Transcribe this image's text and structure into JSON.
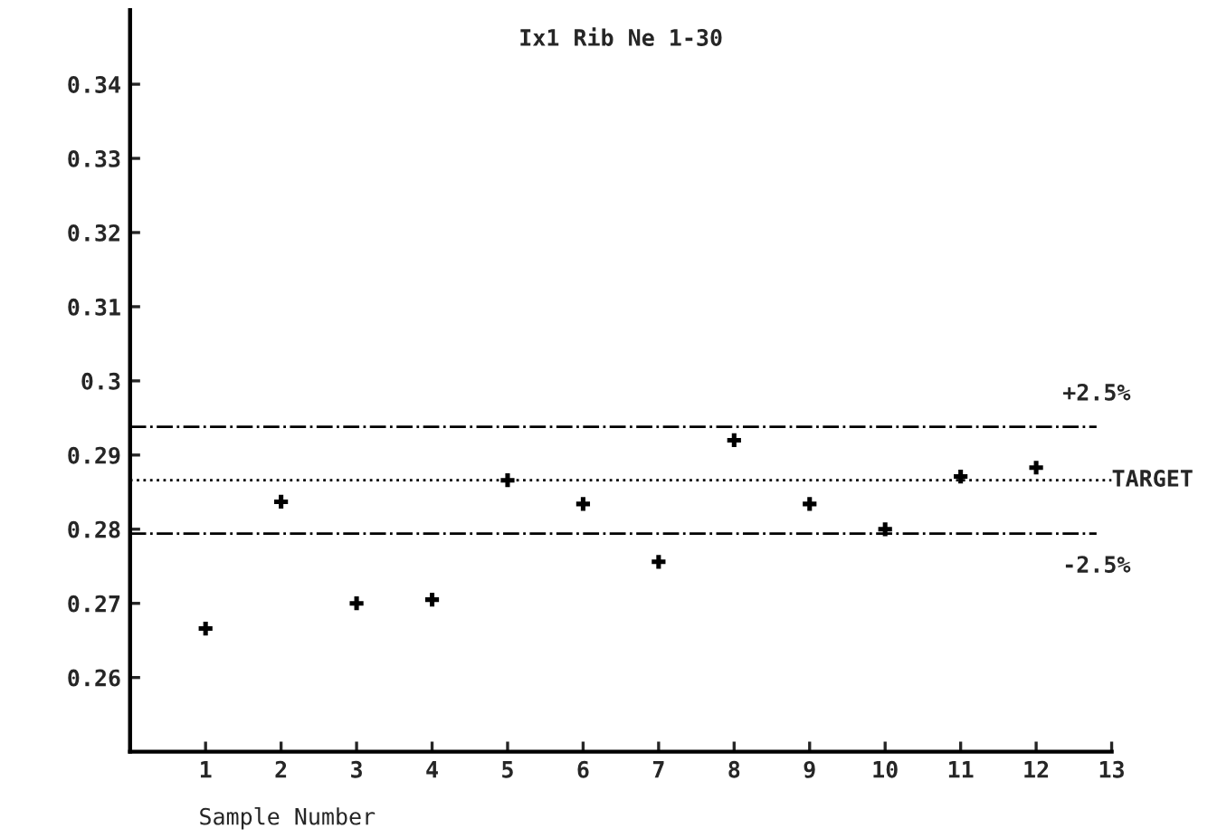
{
  "chart_data": {
    "type": "scatter",
    "title": "Ix1 Rib Ne 1-30",
    "xlabel": "Sample Number",
    "x": [
      1,
      2,
      3,
      4,
      5,
      6,
      7,
      8,
      9,
      10,
      11,
      12
    ],
    "series": [
      {
        "color": "#000000",
        "values": [
          0.2666,
          0.2837,
          0.27,
          0.2705,
          0.2866,
          0.2834,
          0.2756,
          0.292,
          0.2834,
          0.28,
          0.2871,
          0.2883
        ]
      }
    ],
    "xlim": [
      0,
      13
    ],
    "xticks": [
      1,
      2,
      3,
      4,
      5,
      6,
      7,
      8,
      9,
      10,
      11,
      12,
      13
    ],
    "ylim": [
      0.25,
      0.35
    ],
    "yticks": [
      0.26,
      0.27,
      0.28,
      0.29,
      0.3,
      0.31,
      0.32,
      0.33,
      0.34
    ],
    "ref_lines": [
      {
        "axis": "y",
        "value": 0.2938,
        "line_style": "dashdot",
        "color": "#000000"
      },
      {
        "axis": "y",
        "value": 0.2866,
        "label": "TARGET",
        "line_style": "dotted",
        "color": "#000000"
      },
      {
        "axis": "y",
        "value": 0.2794,
        "line_style": "dashdot",
        "color": "#000000"
      }
    ],
    "annotations": [
      {
        "text": "+2.5%",
        "x": 12.8,
        "y": 0.2938
      },
      {
        "text": "-2.5%",
        "x": 12.8,
        "y": 0.2794
      }
    ],
    "marker": "cross",
    "grid": false,
    "legend": false
  }
}
